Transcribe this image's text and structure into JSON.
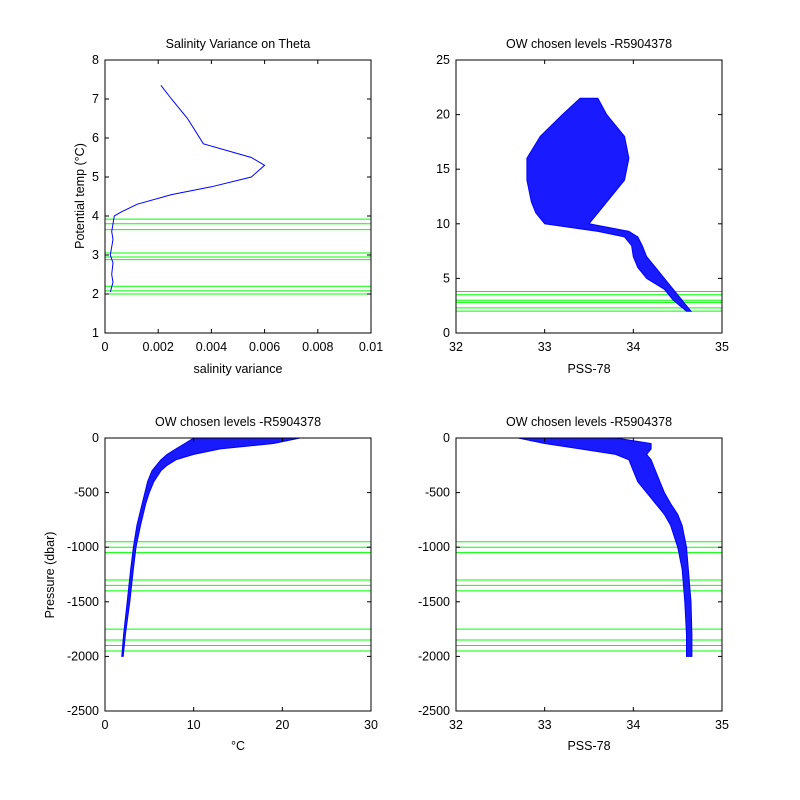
{
  "colors": {
    "profile": "#0000ff",
    "levels": "#00ff00",
    "axes": "#000000"
  },
  "chart_data": [
    {
      "type": "line",
      "title": "Salinity Variance on Theta",
      "xlabel": "salinity variance",
      "ylabel": "Potential temp (°C)",
      "xlim": [
        0,
        0.01
      ],
      "ylim": [
        1,
        8
      ],
      "xticks": [
        "0",
        "0.002",
        "0.004",
        "0.006",
        "0.008",
        "0.01"
      ],
      "yticks": [
        "1",
        "2",
        "3",
        "4",
        "5",
        "6",
        "7",
        "8"
      ],
      "series": [
        {
          "x": [
            0.0021,
            0.0025,
            0.0031,
            0.0037,
            0.0055,
            0.006,
            0.0055,
            0.004,
            0.0025,
            0.0012,
            0.0006,
            0.00035,
            0.0003,
            0.00025,
            0.0003,
            0.0002,
            0.0003,
            0.00025,
            0.0003,
            0.0002
          ],
          "y": [
            7.35,
            7.0,
            6.5,
            5.85,
            5.5,
            5.3,
            5.0,
            4.75,
            4.55,
            4.3,
            4.1,
            4.0,
            3.8,
            3.6,
            3.4,
            3.0,
            2.8,
            2.5,
            2.3,
            2.05
          ]
        }
      ],
      "levels_y": [
        2.0,
        2.08,
        2.2,
        2.88,
        2.95,
        3.05,
        3.65,
        3.8,
        3.92
      ]
    },
    {
      "type": "line",
      "title": "OW chosen levels -R5904378",
      "xlabel": "PSS-78",
      "ylabel": "",
      "xlim": [
        32,
        35
      ],
      "ylim": [
        0,
        25
      ],
      "xticks": [
        "32",
        "33",
        "34",
        "35"
      ],
      "yticks": [
        "0",
        "5",
        "10",
        "15",
        "20",
        "25"
      ],
      "profile_envelope": {
        "y": [
          2.0,
          3.0,
          4.0,
          5.0,
          6.0,
          7.0,
          8.0,
          8.8,
          9.3,
          10.0,
          11.0,
          12.0,
          14.0,
          16.0,
          18.0,
          20.0,
          21.5
        ],
        "x_min": [
          34.6,
          34.45,
          34.35,
          34.15,
          34.05,
          34.0,
          33.98,
          33.9,
          33.6,
          33.0,
          32.9,
          32.85,
          32.8,
          32.8,
          32.95,
          33.2,
          33.4
        ],
        "x_max": [
          34.65,
          34.55,
          34.45,
          34.35,
          34.25,
          34.15,
          34.1,
          34.05,
          33.95,
          33.5,
          33.6,
          33.7,
          33.9,
          33.95,
          33.9,
          33.7,
          33.6
        ]
      },
      "levels_y": [
        2.0,
        2.3,
        2.8,
        3.0,
        3.5,
        3.8
      ]
    },
    {
      "type": "line",
      "title": "OW chosen levels -R5904378",
      "xlabel": "°C",
      "ylabel": "Pressure (dbar)",
      "xlim": [
        0,
        30
      ],
      "ylim": [
        -2500,
        0
      ],
      "xticks": [
        "0",
        "10",
        "20",
        "30"
      ],
      "yticks": [
        "0",
        "-500",
        "-1000",
        "-1500",
        "-2000",
        "-2500"
      ],
      "profile_envelope": {
        "y": [
          0,
          -50,
          -100,
          -150,
          -200,
          -250,
          -300,
          -400,
          -500,
          -600,
          -800,
          -1000,
          -1200,
          -1500,
          -1800,
          -2000
        ],
        "x_min": [
          10.0,
          9.0,
          8.0,
          7.0,
          6.3,
          5.8,
          5.3,
          4.8,
          4.5,
          4.2,
          3.6,
          3.2,
          2.9,
          2.5,
          2.1,
          1.9
        ],
        "x_max": [
          22.0,
          19.0,
          13.0,
          10.0,
          8.0,
          7.0,
          6.3,
          5.5,
          5.0,
          4.6,
          4.0,
          3.5,
          3.2,
          2.8,
          2.3,
          2.05
        ]
      },
      "levels_y": [
        -950,
        -1000,
        -1050,
        -1300,
        -1350,
        -1400,
        -1750,
        -1850,
        -1900,
        -1950
      ]
    },
    {
      "type": "line",
      "title": "OW chosen levels -R5904378",
      "xlabel": "PSS-78",
      "ylabel": "",
      "xlim": [
        32,
        35
      ],
      "ylim": [
        -2500,
        0
      ],
      "xticks": [
        "32",
        "33",
        "34",
        "35"
      ],
      "yticks": [
        "0",
        "-500",
        "-1000",
        "-1500",
        "-2000",
        "-2500"
      ],
      "profile_envelope": {
        "y": [
          0,
          -50,
          -100,
          -150,
          -200,
          -300,
          -400,
          -500,
          -600,
          -700,
          -800,
          -1000,
          -1200,
          -1500,
          -1800,
          -2000
        ],
        "x_min": [
          32.7,
          33.0,
          33.4,
          33.8,
          33.95,
          34.0,
          34.05,
          34.15,
          34.25,
          34.35,
          34.42,
          34.5,
          34.55,
          34.58,
          34.6,
          34.6
        ],
        "x_max": [
          33.8,
          34.2,
          34.2,
          34.15,
          34.2,
          34.25,
          34.3,
          34.35,
          34.42,
          34.5,
          34.55,
          34.6,
          34.62,
          34.65,
          34.66,
          34.66
        ]
      },
      "levels_y": [
        -950,
        -1000,
        -1050,
        -1300,
        -1350,
        -1400,
        -1750,
        -1850,
        -1900,
        -1950
      ]
    }
  ]
}
